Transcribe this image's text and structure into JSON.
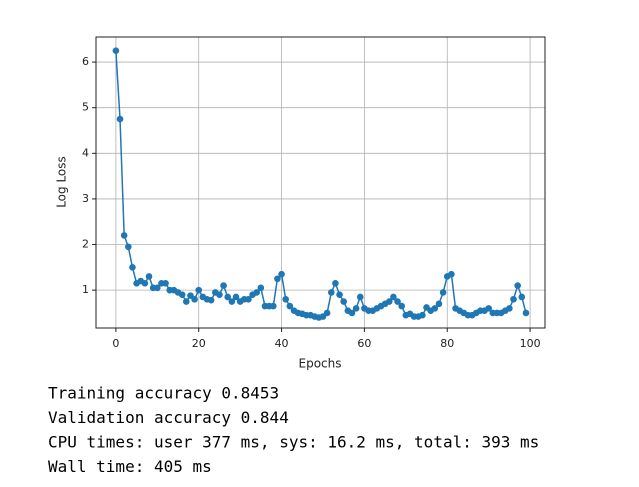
{
  "chart_data": {
    "type": "line",
    "x_label": "Epochs",
    "y_label": "Log Loss",
    "x": [
      0,
      1,
      2,
      3,
      4,
      5,
      6,
      7,
      8,
      9,
      10,
      11,
      12,
      13,
      14,
      15,
      16,
      17,
      18,
      19,
      20,
      21,
      22,
      23,
      24,
      25,
      26,
      27,
      28,
      29,
      30,
      31,
      32,
      33,
      34,
      35,
      36,
      37,
      38,
      39,
      40,
      41,
      42,
      43,
      44,
      45,
      46,
      47,
      48,
      49,
      50,
      51,
      52,
      53,
      54,
      55,
      56,
      57,
      58,
      59,
      60,
      61,
      62,
      63,
      64,
      65,
      66,
      67,
      68,
      69,
      70,
      71,
      72,
      73,
      74,
      75,
      76,
      77,
      78,
      79,
      80,
      81,
      82,
      83,
      84,
      85,
      86,
      87,
      88,
      89,
      90,
      91,
      92,
      93,
      94,
      95,
      96,
      97,
      98,
      99
    ],
    "values": [
      6.25,
      4.75,
      2.2,
      1.95,
      1.5,
      1.15,
      1.2,
      1.15,
      1.3,
      1.05,
      1.05,
      1.15,
      1.15,
      1.0,
      1.0,
      0.95,
      0.9,
      0.75,
      0.88,
      0.8,
      1.0,
      0.85,
      0.8,
      0.78,
      0.95,
      0.9,
      1.1,
      0.85,
      0.75,
      0.85,
      0.75,
      0.8,
      0.8,
      0.9,
      0.95,
      1.05,
      0.65,
      0.65,
      0.65,
      1.25,
      1.35,
      0.8,
      0.65,
      0.55,
      0.5,
      0.48,
      0.45,
      0.45,
      0.42,
      0.4,
      0.42,
      0.5,
      0.95,
      1.15,
      0.9,
      0.75,
      0.55,
      0.5,
      0.6,
      0.85,
      0.6,
      0.55,
      0.55,
      0.6,
      0.65,
      0.7,
      0.75,
      0.85,
      0.75,
      0.65,
      0.45,
      0.48,
      0.42,
      0.42,
      0.45,
      0.62,
      0.55,
      0.6,
      0.7,
      0.95,
      1.3,
      1.35,
      0.6,
      0.55,
      0.5,
      0.45,
      0.45,
      0.5,
      0.55,
      0.55,
      0.6,
      0.5,
      0.5,
      0.5,
      0.55,
      0.6,
      0.8,
      1.1,
      0.85,
      0.5
    ],
    "color": "#1f77b4",
    "markers": true,
    "grid": true,
    "xlim": [
      -4.8,
      103.6
    ],
    "xticks": [
      0,
      20,
      40,
      60,
      80,
      100
    ],
    "ylim": [
      0.17,
      6.55
    ],
    "yticks": [
      1,
      2,
      3,
      4,
      5,
      6
    ]
  },
  "output_lines": [
    "Training accuracy 0.8453",
    "Validation accuracy 0.844",
    "CPU times: user 377 ms, sys: 16.2 ms, total: 393 ms",
    "Wall time: 405 ms"
  ]
}
